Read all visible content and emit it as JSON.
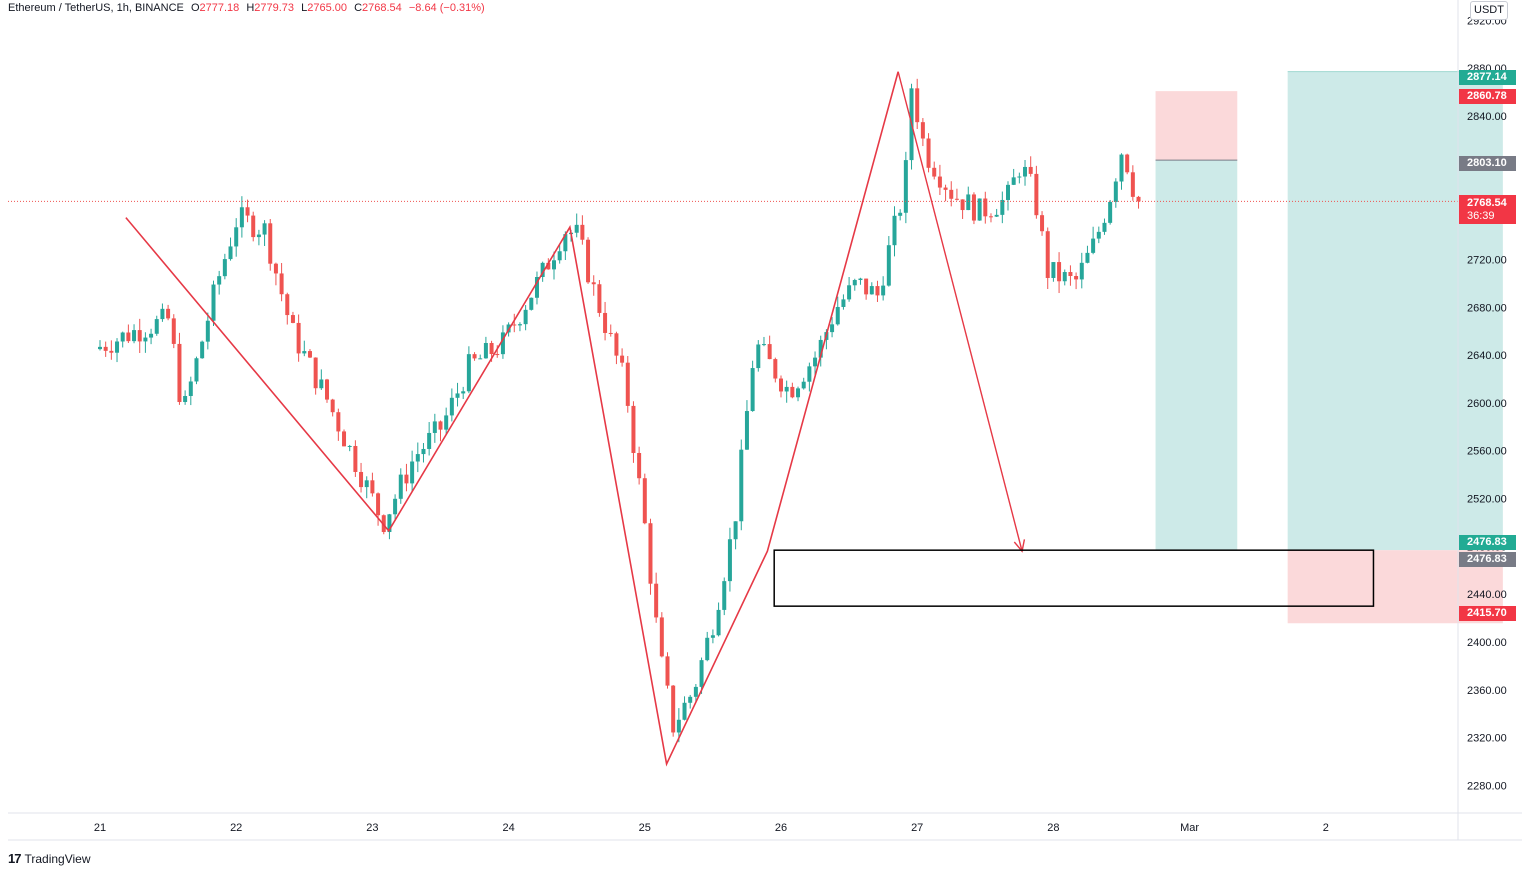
{
  "header": {
    "symbol": "Ethereum / TetherUS, 1h, BINANCE",
    "open_label": "O",
    "open": "2777.18",
    "high_label": "H",
    "high": "2779.73",
    "low_label": "L",
    "low": "2765.00",
    "close_label": "C",
    "close": "2768.54",
    "change": "−8.64 (−0.31%)"
  },
  "currency": "USDT",
  "price_tags": {
    "tag1": "2877.14",
    "tag2": "2860.78",
    "tag3": "2803.10",
    "tag4_price": "2768.54",
    "tag4_timer": "36:39",
    "tag5": "2476.83",
    "tag6": "2476.83",
    "tag7": "2415.70"
  },
  "colors": {
    "up": "#26a69a",
    "down": "#ef5350",
    "zigzag": "#e63946",
    "target_fill": "#cdeae8",
    "stop_fill": "#fbd9da",
    "tag_green": "#22ab94",
    "tag_red": "#f23645",
    "tag_gray": "#787b86"
  },
  "logo": {
    "text": "TradingView"
  },
  "chart_data": {
    "type": "candlestick",
    "symbol": "ETHUSDT",
    "interval": "1h",
    "x_tick_labels": [
      "21",
      "22",
      "23",
      "24",
      "25",
      "26",
      "27",
      "28",
      "Mar",
      "2"
    ],
    "y_tick_values": [
      2280,
      2320,
      2360,
      2400,
      2440,
      2480,
      2520,
      2560,
      2600,
      2640,
      2680,
      2720,
      2760,
      2800,
      2840,
      2880,
      2920
    ],
    "y_tick_labels": [
      "2280.00",
      "2320.00",
      "2360.00",
      "2400.00",
      "2440.00",
      "2480.00",
      "2520.00",
      "2560.00",
      "2600.00",
      "2640.00",
      "2680.00",
      "2720.00",
      "2760.00",
      "2800.00",
      "2840.00",
      "2880.00",
      "2920.00"
    ],
    "ylim": [
      2257,
      2937
    ],
    "anchor_points_day_price": [
      [
        0.0,
        2645
      ],
      [
        0.3,
        2660
      ],
      [
        0.55,
        2670
      ],
      [
        0.65,
        2590
      ],
      [
        0.9,
        2700
      ],
      [
        1.05,
        2755
      ],
      [
        1.25,
        2745
      ],
      [
        1.45,
        2660
      ],
      [
        1.7,
        2605
      ],
      [
        2.0,
        2530
      ],
      [
        2.12,
        2500
      ],
      [
        2.35,
        2555
      ],
      [
        2.55,
        2580
      ],
      [
        2.75,
        2630
      ],
      [
        3.0,
        2650
      ],
      [
        3.3,
        2710
      ],
      [
        3.45,
        2745
      ],
      [
        3.55,
        2740
      ],
      [
        3.65,
        2700
      ],
      [
        3.9,
        2615
      ],
      [
        4.05,
        2490
      ],
      [
        4.15,
        2390
      ],
      [
        4.25,
        2330
      ],
      [
        4.4,
        2360
      ],
      [
        4.55,
        2420
      ],
      [
        4.7,
        2500
      ],
      [
        4.85,
        2650
      ],
      [
        5.1,
        2610
      ],
      [
        5.3,
        2640
      ],
      [
        5.45,
        2680
      ],
      [
        5.6,
        2700
      ],
      [
        5.75,
        2690
      ],
      [
        5.95,
        2780
      ],
      [
        6.0,
        2865
      ],
      [
        6.1,
        2810
      ],
      [
        6.3,
        2775
      ],
      [
        6.5,
        2760
      ],
      [
        6.7,
        2770
      ],
      [
        6.8,
        2800
      ],
      [
        6.9,
        2775
      ],
      [
        7.0,
        2710
      ],
      [
        7.2,
        2700
      ],
      [
        7.35,
        2735
      ],
      [
        7.45,
        2770
      ],
      [
        7.55,
        2815
      ],
      [
        7.65,
        2770
      ]
    ],
    "zigzag_day_price": [
      [
        0.19,
        2755
      ],
      [
        2.12,
        2493
      ],
      [
        3.45,
        2747
      ],
      [
        4.16,
        2298
      ],
      [
        4.9,
        2476
      ],
      [
        5.86,
        2877
      ]
    ],
    "projection_arrow_day_price": [
      [
        5.86,
        2877
      ],
      [
        6.77,
        2476
      ]
    ],
    "rectangle_day_price": {
      "day_start": 4.95,
      "day_end": 9.35,
      "top": 2476.83,
      "bottom": 2430
    },
    "position_boxes": [
      {
        "day_start": 7.75,
        "day_end": 8.35,
        "target_top": 2803.1,
        "entry": 2476.83,
        "stop": 2860.78
      },
      {
        "day_start": 8.72,
        "day_end": 10.3,
        "target_top": 2877.14,
        "entry": 2476.83,
        "stop": 2415.7
      }
    ],
    "last_price": 2768.54
  }
}
